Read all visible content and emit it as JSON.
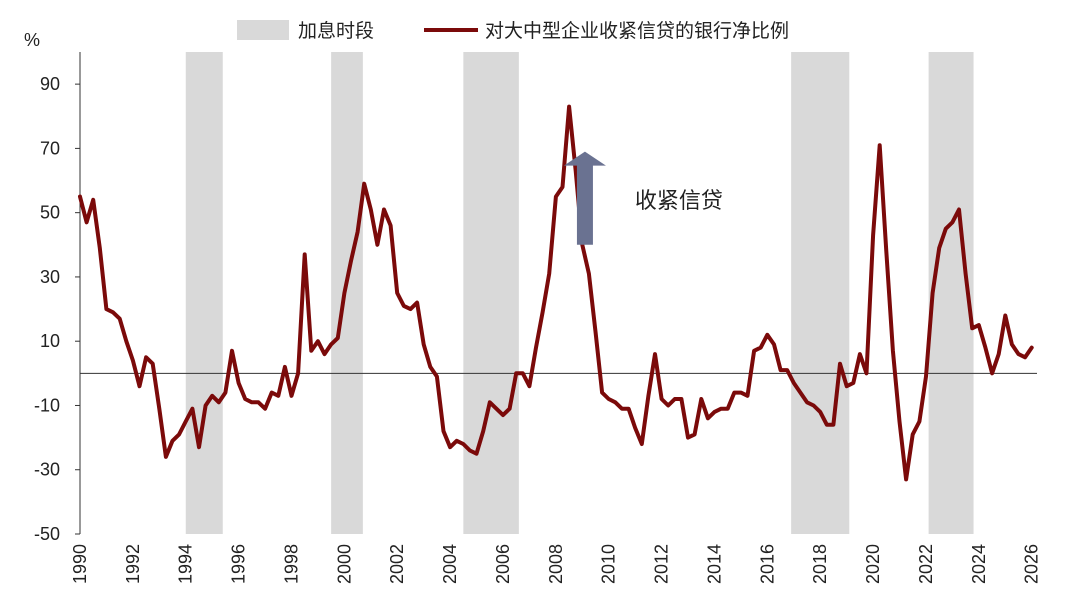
{
  "chart_data": {
    "type": "line",
    "title": "",
    "xlabel": "",
    "ylabel": "%",
    "xlim": [
      1990,
      2026.2
    ],
    "ylim": [
      -50,
      100
    ],
    "yticks": [
      -50,
      -30,
      -10,
      10,
      30,
      50,
      70,
      90
    ],
    "xticks": [
      1990,
      1992,
      1994,
      1996,
      1998,
      2000,
      2002,
      2004,
      2006,
      2008,
      2010,
      2012,
      2014,
      2016,
      2018,
      2020,
      2022,
      2024,
      2026
    ],
    "grid": false,
    "legend_position": "top",
    "shaded_periods_name": "加息时段",
    "shaded_periods": [
      [
        1994.0,
        1995.4
      ],
      [
        1999.5,
        2000.7
      ],
      [
        2004.5,
        2006.6
      ],
      [
        2016.9,
        2019.1
      ],
      [
        2022.1,
        2023.8
      ]
    ],
    "series": [
      {
        "name": "对大中型企业收紧信贷的银行净比例",
        "color": "#7b0a0a",
        "x": [
          1990.0,
          1990.25,
          1990.5,
          1990.75,
          1991.0,
          1991.25,
          1991.5,
          1991.75,
          1992.0,
          1992.25,
          1992.5,
          1992.75,
          1993.0,
          1993.25,
          1993.5,
          1993.75,
          1994.0,
          1994.25,
          1994.5,
          1994.75,
          1995.0,
          1995.25,
          1995.5,
          1995.75,
          1996.0,
          1996.25,
          1996.5,
          1996.75,
          1997.0,
          1997.25,
          1997.5,
          1997.75,
          1998.0,
          1998.25,
          1998.5,
          1998.75,
          1999.0,
          1999.25,
          1999.5,
          1999.75,
          2000.0,
          2000.25,
          2000.5,
          2000.75,
          2001.0,
          2001.25,
          2001.5,
          2001.75,
          2002.0,
          2002.25,
          2002.5,
          2002.75,
          2003.0,
          2003.25,
          2003.5,
          2003.75,
          2004.0,
          2004.25,
          2004.5,
          2004.75,
          2005.0,
          2005.25,
          2005.5,
          2005.75,
          2006.0,
          2006.25,
          2006.5,
          2006.75,
          2007.0,
          2007.25,
          2007.5,
          2007.75,
          2008.0,
          2008.25,
          2008.5,
          2008.75,
          2009.0,
          2009.25,
          2009.5,
          2009.75,
          2010.0,
          2010.25,
          2010.5,
          2010.75,
          2011.0,
          2011.25,
          2011.5,
          2011.75,
          2012.0,
          2012.25,
          2012.5,
          2012.75,
          2013.0,
          2013.25,
          2013.5,
          2013.75,
          2014.0,
          2014.25,
          2014.5,
          2014.75,
          2015.0,
          2015.25,
          2015.5,
          2015.75,
          2016.0,
          2016.25,
          2016.5,
          2016.75,
          2017.0,
          2017.25,
          2017.5,
          2017.75,
          2018.0,
          2018.25,
          2018.5,
          2018.75,
          2019.0,
          2019.25,
          2019.5,
          2019.75,
          2020.0,
          2020.25,
          2020.5,
          2020.75,
          2021.0,
          2021.25,
          2021.5,
          2021.75,
          2022.0,
          2022.25,
          2022.5,
          2022.75,
          2023.0,
          2023.25,
          2023.5,
          2023.75,
          2024.0,
          2024.25,
          2024.5,
          2024.75,
          2025.0,
          2025.25,
          2025.5,
          2025.75,
          2026.0
        ],
        "y": [
          55,
          47,
          54,
          39,
          20,
          19,
          17,
          10,
          4,
          -4,
          5,
          3,
          -11,
          -26,
          -21,
          -19,
          -15,
          -11,
          -23,
          -10,
          -7,
          -9,
          -6,
          7,
          -3,
          -8,
          -9,
          -9,
          -11,
          -6,
          -7,
          2,
          -7,
          0,
          37,
          7,
          10,
          6,
          9,
          11,
          25,
          35,
          44,
          59,
          51,
          40,
          51,
          46,
          25,
          21,
          20,
          22,
          9,
          2,
          -1,
          -18,
          -23,
          -21,
          -22,
          -24,
          -25,
          -18,
          -9,
          -11,
          -13,
          -11,
          0,
          0,
          -4,
          8,
          19,
          31,
          55,
          58,
          83,
          63,
          40,
          31,
          13,
          -6,
          -8,
          -9,
          -11,
          -11,
          -17,
          -22,
          -7,
          6,
          -8,
          -10,
          -8,
          -8,
          -20,
          -19,
          -8,
          -14,
          -12,
          -11,
          -11,
          -6,
          -6,
          -7,
          7,
          8,
          12,
          9,
          1,
          1,
          -3,
          -6,
          -9,
          -10,
          -12,
          -16,
          -16,
          3,
          -4,
          -3,
          6,
          0,
          43,
          71,
          38,
          7,
          -15,
          -33,
          -19,
          -15,
          -1,
          25,
          39,
          45,
          47,
          51,
          31,
          14,
          15,
          8,
          0,
          6,
          18,
          9,
          6,
          5,
          8
        ]
      }
    ],
    "annotations": [
      {
        "text": "收紧信贷",
        "type": "arrow-up",
        "x": 2009.1,
        "y_from": 40,
        "y_to": 69,
        "arrow_color": "#6a7291"
      }
    ]
  }
}
